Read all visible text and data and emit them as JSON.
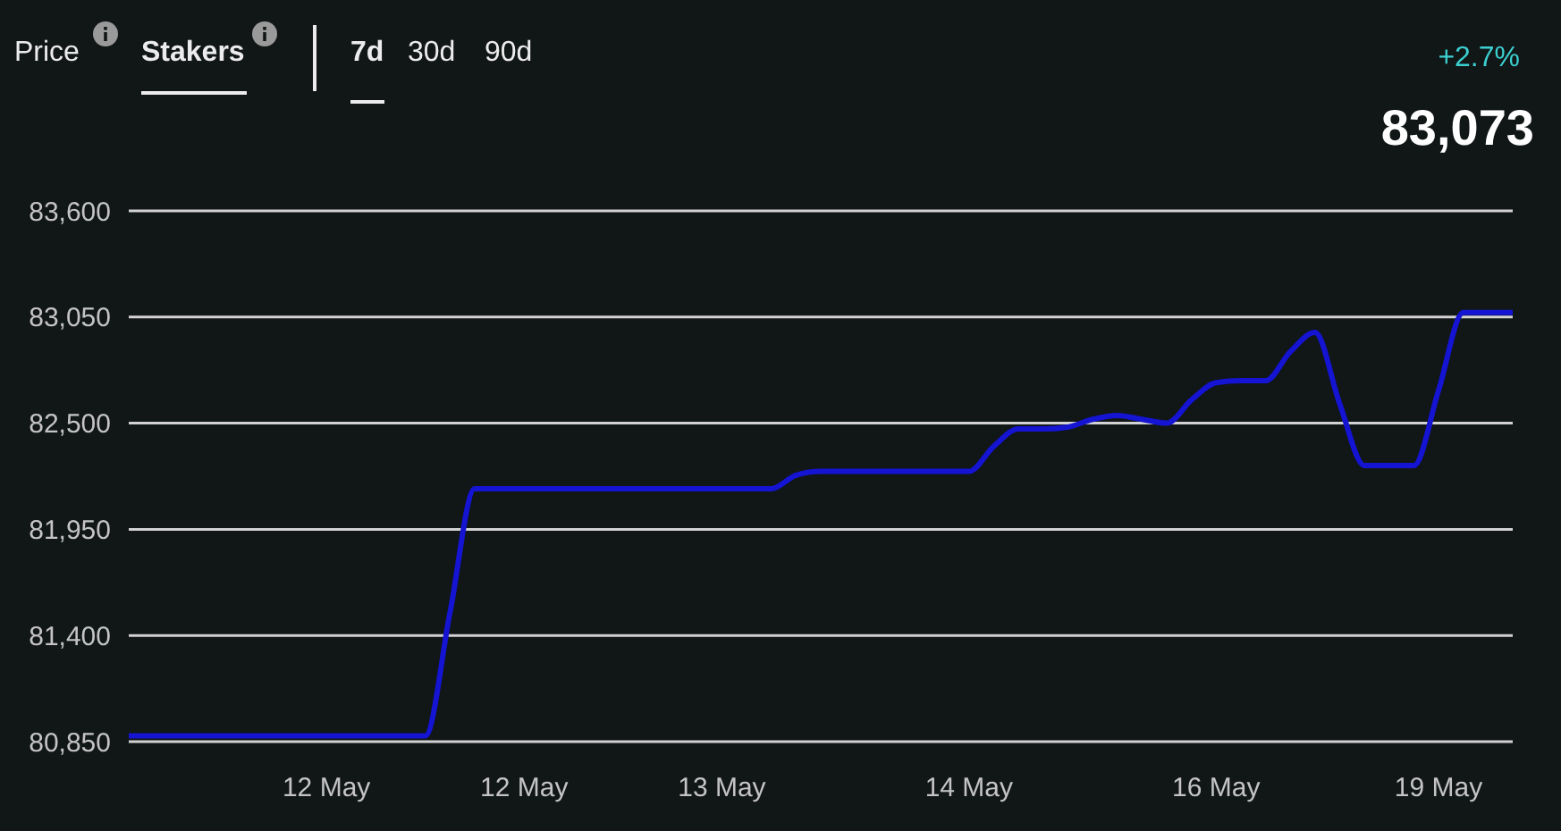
{
  "chart_data": {
    "type": "line",
    "annotations": [
      "Price",
      "Stakers",
      "7d",
      "30d",
      "90d",
      "+2.7%",
      "83,073"
    ],
    "categories": [
      null,
      null,
      null,
      null,
      null,
      null,
      null,
      null,
      "12 May",
      null,
      null,
      null,
      null,
      null,
      null,
      null,
      "12 May",
      null,
      null,
      null,
      null,
      null,
      null,
      null,
      "13 May",
      null,
      null,
      null,
      null,
      null,
      null,
      null,
      null,
      null,
      "14 May",
      null,
      null,
      null,
      null,
      null,
      null,
      null,
      null,
      null,
      "16 May",
      null,
      null,
      null,
      null,
      null,
      null,
      null,
      null,
      "19 May",
      null,
      null,
      null
    ],
    "series": [
      {
        "color": "#1414d2",
        "values": [
          80880,
          80880,
          80880,
          80880,
          80880,
          80880,
          80880,
          80880,
          80880,
          80880,
          80880,
          80880,
          80880,
          81520,
          82160,
          82160,
          82160,
          82160,
          82160,
          82160,
          82160,
          82160,
          82160,
          82160,
          82160,
          82160,
          82160,
          82230,
          82250,
          82250,
          82250,
          82250,
          82250,
          82250,
          82250,
          82380,
          82470,
          82470,
          82480,
          82520,
          82540,
          82520,
          82500,
          82620,
          82710,
          82720,
          82720,
          82870,
          82970,
          82600,
          82280,
          82280,
          82280,
          82670,
          83073,
          83073,
          83073
        ]
      }
    ],
    "ylim": [
      80850,
      83600
    ],
    "yticks": [
      {
        "value": 80850,
        "label": "80,850"
      },
      {
        "value": 81400,
        "label": "81,400"
      },
      {
        "value": 81950,
        "label": "81,950"
      },
      {
        "value": 82500,
        "label": "82,500"
      },
      {
        "value": 83050,
        "label": "83,050"
      },
      {
        "value": 83600,
        "label": "83,600"
      }
    ],
    "grid": "y",
    "marker": "none",
    "line_style": "solid"
  }
}
